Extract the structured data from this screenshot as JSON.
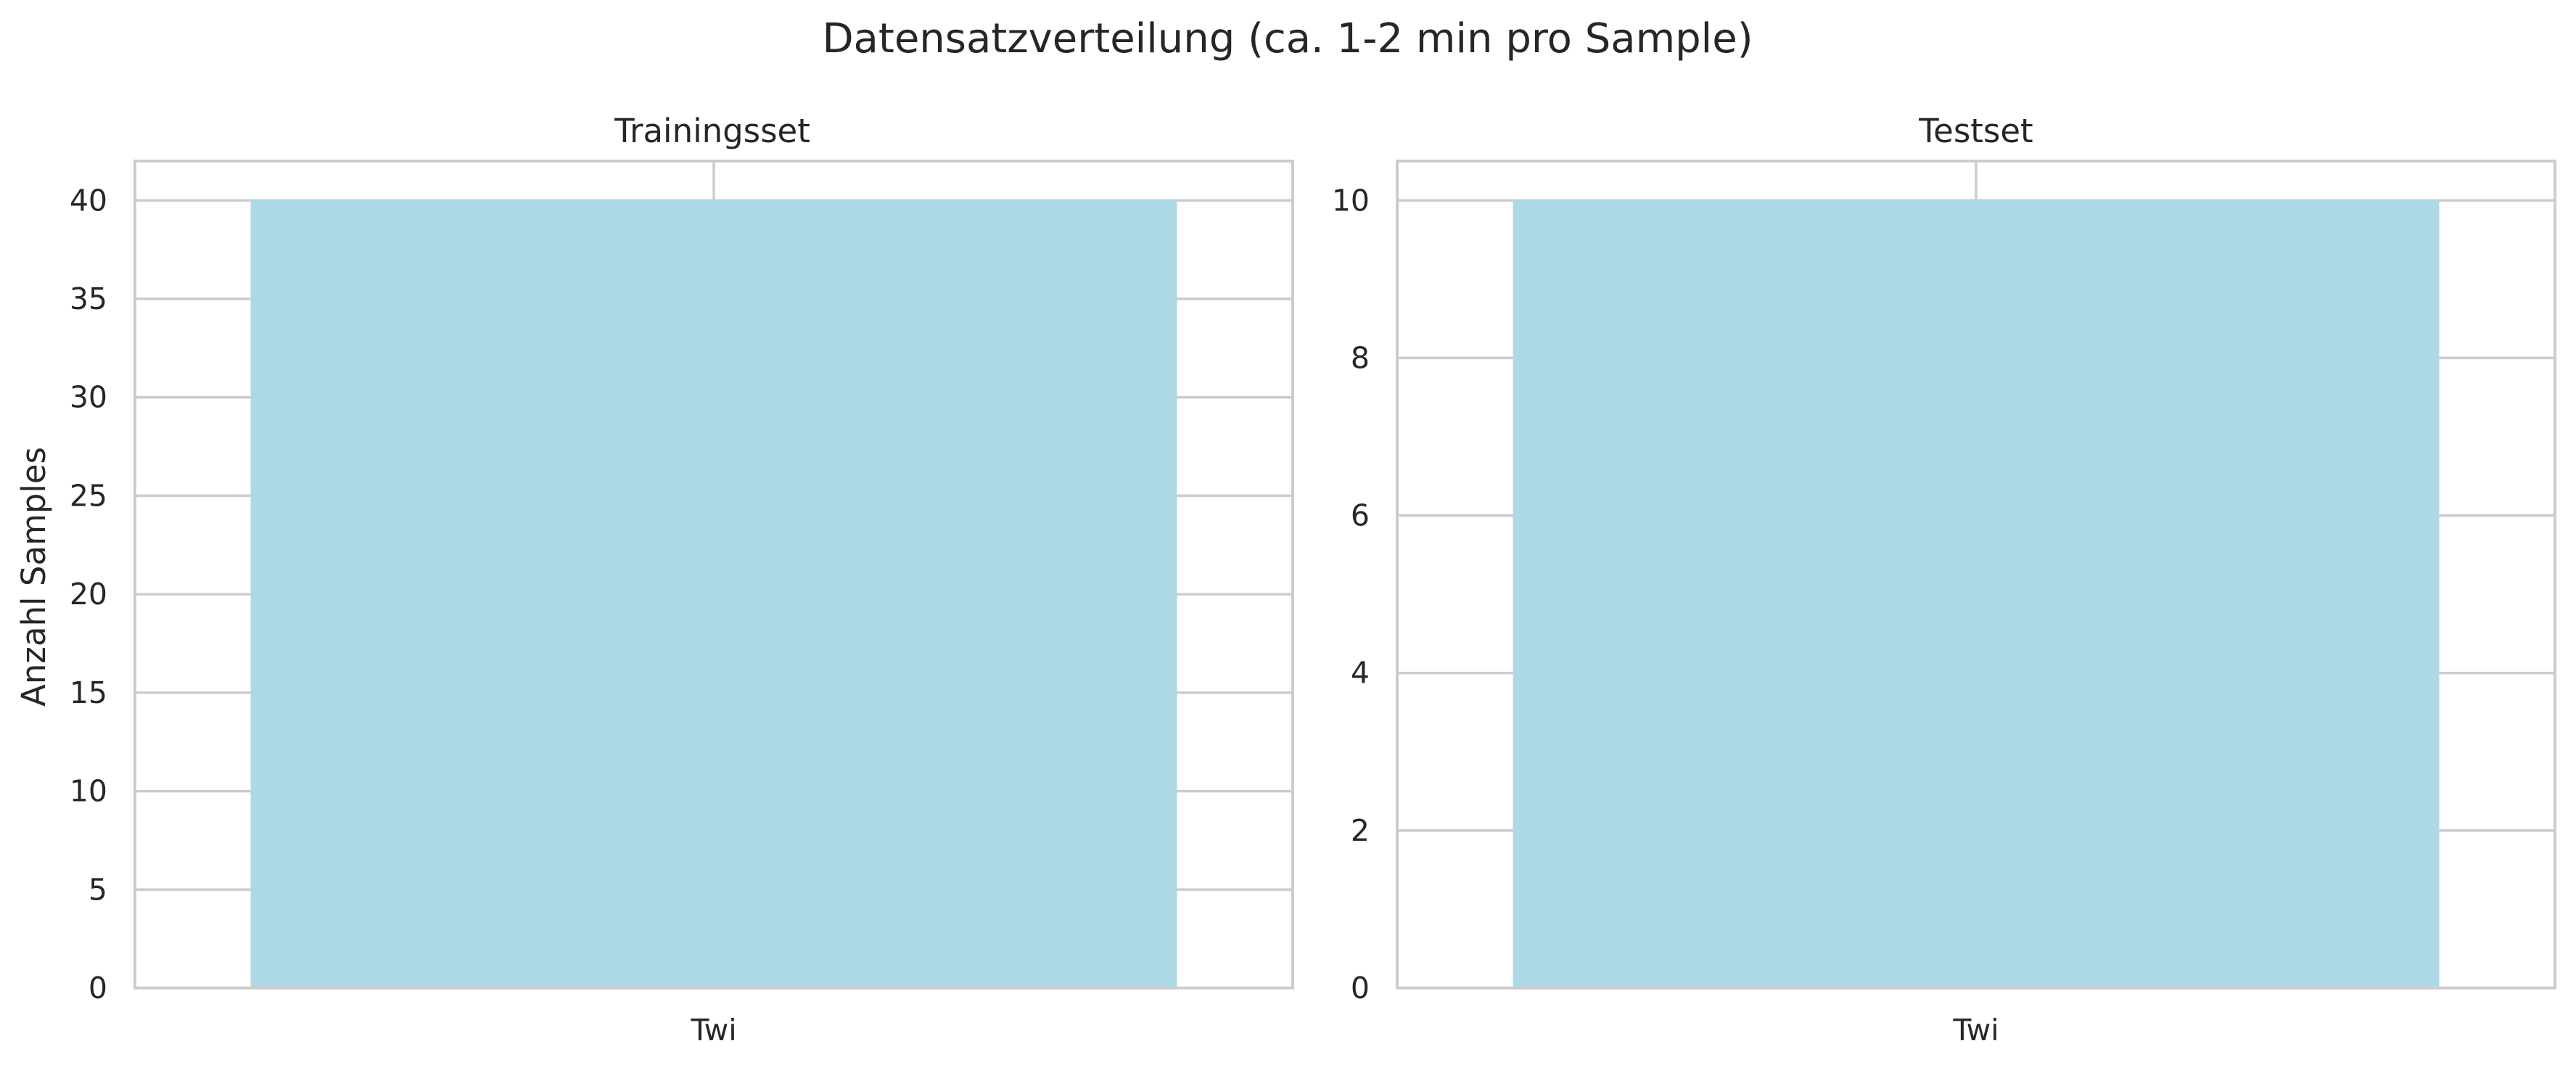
{
  "chart_data": {
    "suptitle": "Datensatzverteilung (ca. 1-2 min pro Sample)",
    "panels": [
      {
        "type": "bar",
        "title": "Trainingsset",
        "categories": [
          "Twi"
        ],
        "values": [
          40
        ],
        "ylabel": "Anzahl Samples",
        "xlabel": "",
        "ylim": [
          0,
          42
        ],
        "yticks": [
          0,
          5,
          10,
          15,
          20,
          25,
          30,
          35,
          40
        ],
        "bar_color": "#add8e6",
        "grid": true
      },
      {
        "type": "bar",
        "title": "Testset",
        "categories": [
          "Twi"
        ],
        "values": [
          10
        ],
        "ylabel": "",
        "xlabel": "",
        "ylim": [
          0,
          10.5
        ],
        "yticks": [
          0,
          2,
          4,
          6,
          8,
          10
        ],
        "bar_color": "#add8e6",
        "grid": true
      }
    ]
  }
}
